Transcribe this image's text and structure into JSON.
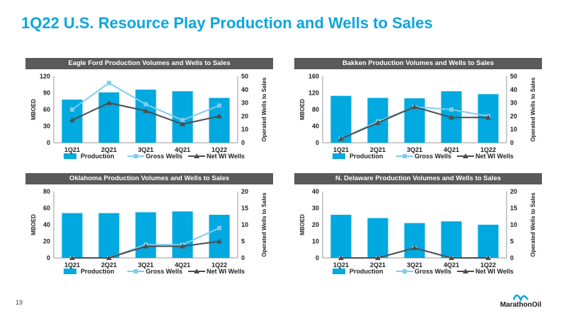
{
  "page": {
    "title": "1Q22 U.S. Resource Play Production and Wells to Sales",
    "page_number": "19"
  },
  "logo": {
    "text": "MarathonOil"
  },
  "colors": {
    "title": "#0aa6df",
    "production": "#00a9e0",
    "gross_wells": "#7fcdec",
    "net_wells": "#4d4d4d",
    "header": "#5a5a5a"
  },
  "chart_data": [
    {
      "type": "bar",
      "title": "Eagle Ford Production Volumes and Wells to Sales",
      "categories": [
        "1Q21",
        "2Q21",
        "3Q21",
        "4Q21",
        "1Q22"
      ],
      "ylabel": "MBOED",
      "y2label": "Operated Wells to Sales",
      "ylim": [
        0,
        120
      ],
      "yticks": [
        0,
        30,
        60,
        90,
        120
      ],
      "y2lim": [
        0,
        50
      ],
      "y2ticks": [
        0,
        10,
        20,
        30,
        40,
        50
      ],
      "legend": "bottom",
      "series": [
        {
          "name": "Production",
          "type": "bar",
          "axis": "left",
          "color": "#00a9e0",
          "values": [
            78,
            91,
            96,
            93,
            81
          ]
        },
        {
          "name": "Gross Wells",
          "type": "line",
          "axis": "right",
          "marker": "square",
          "color": "#7fcdec",
          "values": [
            25,
            45,
            29,
            17,
            28
          ]
        },
        {
          "name": "Net WI Wells",
          "type": "line",
          "axis": "right",
          "marker": "triangle",
          "color": "#4d4d4d",
          "values": [
            17,
            30,
            24,
            14,
            20
          ]
        }
      ]
    },
    {
      "type": "bar",
      "title": "Bakken Production Volumes and Wells to Sales",
      "categories": [
        "1Q21",
        "2Q21",
        "3Q21",
        "4Q21",
        "1Q22"
      ],
      "ylabel": "MBOED",
      "y2label": "Operated Wells to Sales",
      "ylim": [
        0,
        160
      ],
      "yticks": [
        0,
        40,
        80,
        120,
        160
      ],
      "y2lim": [
        0,
        50
      ],
      "y2ticks": [
        0,
        10,
        20,
        30,
        40,
        50
      ],
      "legend": "bottom",
      "series": [
        {
          "name": "Production",
          "type": "bar",
          "axis": "left",
          "color": "#00a9e0",
          "values": [
            113,
            108,
            107,
            124,
            117
          ]
        },
        {
          "name": "Gross Wells",
          "type": "line",
          "axis": "right",
          "marker": "square",
          "color": "#7fcdec",
          "values": [
            3,
            16,
            27,
            25,
            20
          ]
        },
        {
          "name": "Net WI Wells",
          "type": "line",
          "axis": "right",
          "marker": "triangle",
          "color": "#4d4d4d",
          "values": [
            3,
            15,
            27,
            19,
            19
          ]
        }
      ]
    },
    {
      "type": "bar",
      "title": "Oklahoma Production Volumes and Wells to Sales",
      "categories": [
        "1Q21",
        "2Q21",
        "3Q21",
        "4Q21",
        "1Q22"
      ],
      "ylabel": "MBOED",
      "y2label": "Operated Wells to Sales",
      "ylim": [
        0,
        80
      ],
      "yticks": [
        0,
        20,
        40,
        60,
        80
      ],
      "y2lim": [
        0,
        20
      ],
      "y2ticks": [
        0,
        5,
        10,
        15,
        20
      ],
      "legend": "bottom",
      "series": [
        {
          "name": "Production",
          "type": "bar",
          "axis": "left",
          "color": "#00a9e0",
          "values": [
            54,
            54,
            55,
            56,
            52
          ]
        },
        {
          "name": "Gross Wells",
          "type": "line",
          "axis": "right",
          "marker": "square",
          "color": "#7fcdec",
          "values": [
            0,
            0,
            4,
            4,
            9
          ]
        },
        {
          "name": "Net WI Wells",
          "type": "line",
          "axis": "right",
          "marker": "triangle",
          "color": "#4d4d4d",
          "values": [
            0,
            0,
            3.5,
            3.5,
            5
          ]
        }
      ]
    },
    {
      "type": "bar",
      "title": "N. Delaware Production Volumes and Wells to Sales",
      "categories": [
        "1Q21",
        "2Q21",
        "3Q21",
        "4Q21",
        "1Q22"
      ],
      "ylabel": "MBOED",
      "y2label": "Operated Wells to Sales",
      "ylim": [
        0,
        40
      ],
      "yticks": [
        0,
        10,
        20,
        30,
        40
      ],
      "y2lim": [
        0,
        20
      ],
      "y2ticks": [
        0,
        5,
        10,
        15,
        20
      ],
      "legend": "bottom",
      "series": [
        {
          "name": "Production",
          "type": "bar",
          "axis": "left",
          "color": "#00a9e0",
          "values": [
            26,
            24,
            21,
            22,
            20
          ]
        },
        {
          "name": "Gross Wells",
          "type": "line",
          "axis": "right",
          "marker": "square",
          "color": "#7fcdec",
          "values": [
            0,
            0,
            3,
            0,
            0
          ]
        },
        {
          "name": "Net WI Wells",
          "type": "line",
          "axis": "right",
          "marker": "triangle",
          "color": "#4d4d4d",
          "values": [
            0,
            0,
            3,
            0,
            0
          ]
        }
      ]
    }
  ]
}
